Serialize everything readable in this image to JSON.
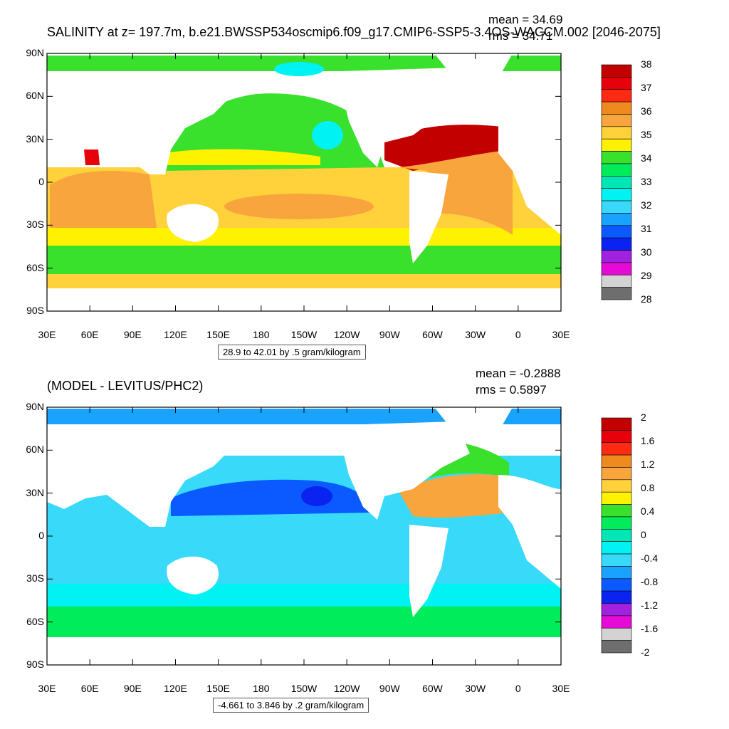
{
  "colors": {
    "land": "#ffffff",
    "ocean_top": [
      "#00e01c",
      "#fff200",
      "#ffd13a",
      "#f9a53e",
      "#ee8a1e",
      "#e7010a",
      "#c30000"
    ],
    "ocean_bottom": [
      "#18a7e6",
      "#44d2f2",
      "#86f3f6",
      "#00e673",
      "#39ff39",
      "#f8f70f",
      "#ffad34",
      "#e7010a"
    ]
  },
  "top_panel": {
    "title": "SALINITY at z= 197.7m, b.e21.BWSSP534oscmip6.f09_g17.CMIP6-SSP5-3.4OS-WACCM.002 [2046-2075]",
    "mean": "mean = 34.69",
    "rms": "rms = 34.71",
    "range_label": "28.9 to 42.01 by .5 gram/kilogram",
    "lat_ticks": [
      "90N",
      "60N",
      "30N",
      "0",
      "30S",
      "60S",
      "90S"
    ],
    "lon_ticks": [
      "30E",
      "60E",
      "90E",
      "120E",
      "150E",
      "180",
      "150W",
      "120W",
      "90W",
      "60W",
      "30W",
      "0",
      "30E"
    ],
    "colorbar": {
      "labels": [
        "38",
        "37",
        "36",
        "35",
        "34",
        "33",
        "32",
        "31",
        "30",
        "29",
        "28"
      ],
      "colors": [
        "#c30000",
        "#e7010a",
        "#ff2a12",
        "#ee8a1e",
        "#f9a53e",
        "#ffd13a",
        "#fff200",
        "#39e02c",
        "#00ec5a",
        "#00e6b4",
        "#00f2f2",
        "#39d9f9",
        "#1aa2ff",
        "#0a5aff",
        "#0a23f0",
        "#a021e0",
        "#e60ad6",
        "#d3d3d3",
        "#6e6e6e"
      ]
    }
  },
  "bottom_panel": {
    "title": "(MODEL - LEVITUS/PHC2)",
    "mean": "mean = -0.2888",
    "rms": "rms = 0.5897",
    "range_label": "-4.661 to 3.846 by .2 gram/kilogram",
    "lat_ticks": [
      "90N",
      "60N",
      "30N",
      "0",
      "30S",
      "60S",
      "90S"
    ],
    "lon_ticks": [
      "30E",
      "60E",
      "90E",
      "120E",
      "150E",
      "180",
      "150W",
      "120W",
      "90W",
      "60W",
      "30W",
      "0",
      "30E"
    ],
    "colorbar": {
      "labels": [
        "2",
        "1.6",
        "1.2",
        "0.8",
        "0.4",
        "0",
        "-0.4",
        "-0.8",
        "-1.2",
        "-1.6",
        "-2"
      ],
      "colors": [
        "#c30000",
        "#e7010a",
        "#ff2a12",
        "#ee8a1e",
        "#f9a53e",
        "#ffd13a",
        "#fff200",
        "#39e02c",
        "#00ec5a",
        "#00e6b4",
        "#00f2f2",
        "#39d9f9",
        "#1aa2ff",
        "#0a5aff",
        "#0a23f0",
        "#a021e0",
        "#e60ad6",
        "#d3d3d3",
        "#6e6e6e"
      ]
    }
  }
}
